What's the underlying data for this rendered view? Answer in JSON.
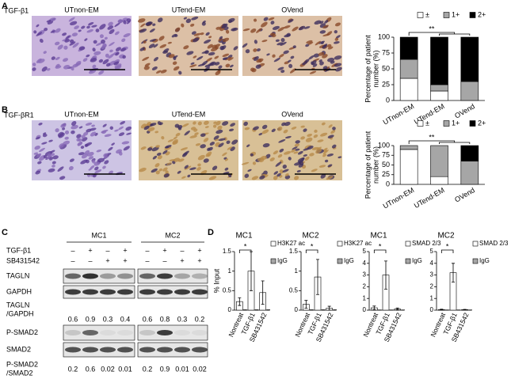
{
  "panels": {
    "a": "A",
    "b": "B",
    "c": "C",
    "d": "D"
  },
  "images": [
    {
      "row_label": "TGF-β1",
      "labels": [
        "UTnon-EM",
        "UTend-EM",
        "OVend"
      ]
    },
    {
      "row_label": "TGF-βR1",
      "labels": [
        "UTnon-EM",
        "UTend-EM",
        "OVend"
      ]
    }
  ],
  "blot": {
    "groups": [
      "MC1",
      "MC2"
    ],
    "treatments": [
      {
        "name": "TGF-β1",
        "signs": [
          "–",
          "+",
          "–",
          "+",
          "–",
          "+",
          "–",
          "+"
        ]
      },
      {
        "name": "SB431542",
        "signs": [
          "–",
          "–",
          "+",
          "+",
          "–",
          "–",
          "+",
          "+"
        ]
      }
    ],
    "bands": [
      "TAGLN",
      "GAPDH",
      "P-SMAD2",
      "SMAD2"
    ],
    "ratios": [
      {
        "label_lines": [
          "TAGLN",
          "/GAPDH"
        ],
        "values": [
          0.6,
          0.9,
          0.3,
          0.4,
          0.6,
          0.8,
          0.3,
          0.2
        ]
      },
      {
        "label_lines": [
          "P-SMAD2",
          "/SMAD2"
        ],
        "values": [
          0.2,
          0.6,
          0.02,
          0.01,
          0.2,
          0.9,
          0.01,
          0.02
        ]
      }
    ]
  },
  "chart_data": [
    {
      "type": "stacked_bar",
      "categories": [
        "UTnon-EM",
        "UTend-EM",
        "OVend"
      ],
      "series": [
        {
          "name": "±",
          "color": "#ffffff",
          "values": [
            35,
            15,
            0
          ]
        },
        {
          "name": "1+",
          "color": "#a6a6a6",
          "values": [
            30,
            10,
            30
          ]
        },
        {
          "name": "2+",
          "color": "#000000",
          "values": [
            35,
            75,
            70
          ]
        }
      ],
      "ylabel": [
        "Percentage of patient",
        "number (%)"
      ],
      "ylim": [
        0,
        100
      ],
      "yticks": [
        0,
        25,
        50,
        75,
        100
      ],
      "annotation": "**"
    },
    {
      "type": "stacked_bar",
      "categories": [
        "UTnon-EM",
        "UTend-EM",
        "OVend"
      ],
      "series": [
        {
          "name": "±",
          "color": "#ffffff",
          "values": [
            90,
            20,
            0
          ]
        },
        {
          "name": "1+",
          "color": "#a6a6a6",
          "values": [
            10,
            80,
            60
          ]
        },
        {
          "name": "2+",
          "color": "#000000",
          "values": [
            0,
            0,
            40
          ]
        }
      ],
      "ylabel": [
        "Percentage of patient",
        "number (%)"
      ],
      "ylim": [
        0,
        100
      ],
      "yticks": [
        0,
        25,
        50,
        75,
        100
      ],
      "annotation": "**"
    },
    {
      "type": "bar",
      "title": "MC1",
      "ylabel": "% Input",
      "categories": [
        "Nontreat",
        "TGF-β1",
        "SB431542"
      ],
      "series": [
        {
          "name": "H3K27 ac",
          "color": "#ffffff",
          "values": [
            0.22,
            1.0,
            0.45
          ],
          "errors": [
            0.1,
            0.5,
            0.3
          ]
        },
        {
          "name": "IgG",
          "color": "#a6a6a6",
          "values": [
            0.01,
            0.01,
            0.01
          ]
        }
      ],
      "ylim": [
        0,
        1.5
      ],
      "yticks": [
        0,
        0.5,
        1,
        1.5
      ],
      "annotation": "*"
    },
    {
      "type": "bar",
      "title": "MC2",
      "categories": [
        "Nontreat",
        "TGF-β1",
        "SB431542"
      ],
      "series": [
        {
          "name": "H3K27 ac",
          "color": "#ffffff",
          "values": [
            0.15,
            0.85,
            0.05
          ],
          "errors": [
            0.1,
            0.45,
            0.05
          ]
        },
        {
          "name": "IgG",
          "color": "#a6a6a6",
          "values": [
            0.01,
            0.01,
            0.01
          ]
        }
      ],
      "ylim": [
        0,
        1.5
      ],
      "yticks": [
        0,
        0.5,
        1,
        1.5
      ],
      "annotation": "*"
    },
    {
      "type": "bar",
      "title": "MC1",
      "categories": [
        "Nontreat",
        "TGF-β1",
        "SB431542"
      ],
      "series": [
        {
          "name": "SMAD 2/3",
          "color": "#ffffff",
          "values": [
            0.2,
            3.0,
            0.1
          ],
          "errors": [
            0.15,
            1.2,
            0.08
          ]
        },
        {
          "name": "IgG",
          "color": "#a6a6a6",
          "values": [
            0.02,
            0.02,
            0.02
          ]
        }
      ],
      "ylim": [
        0,
        5
      ],
      "yticks": [
        0,
        1,
        2,
        3,
        4,
        5
      ],
      "annotation": "*"
    },
    {
      "type": "bar",
      "title": "MC2",
      "categories": [
        "Nontreat",
        "TGF-β1",
        "SB431542"
      ],
      "series": [
        {
          "name": "SMAD 2/3",
          "color": "#ffffff",
          "values": [
            0.05,
            3.2,
            0.05
          ],
          "errors": [
            0.03,
            0.8,
            0.02
          ]
        },
        {
          "name": "IgG",
          "color": "#a6a6a6",
          "values": [
            0.02,
            0.02,
            0.02
          ]
        }
      ],
      "ylim": [
        0,
        5
      ],
      "yticks": [
        0,
        1,
        2,
        3,
        4,
        5
      ],
      "annotation": "*"
    }
  ]
}
